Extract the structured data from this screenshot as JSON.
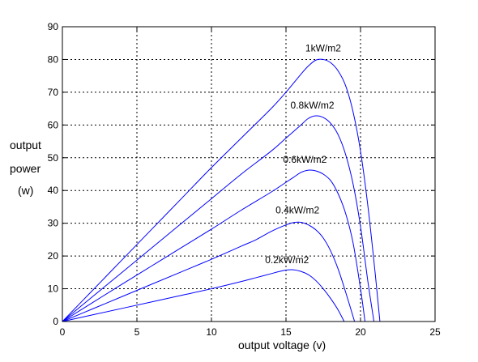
{
  "chart_data": {
    "type": "line",
    "xlabel": "output voltage (v)",
    "ylabel_lines": [
      "output",
      "power",
      "(w)"
    ],
    "xlim": [
      0,
      25
    ],
    "ylim": [
      0,
      90
    ],
    "xticks": [
      0,
      5,
      10,
      15,
      20,
      25
    ],
    "yticks": [
      0,
      10,
      20,
      30,
      40,
      50,
      60,
      70,
      80,
      90
    ],
    "grid": true,
    "line_color": "#0000ff",
    "series": [
      {
        "name": "1kW/m2",
        "x": [
          0,
          2,
          4,
          6,
          8,
          10,
          12,
          14,
          15,
          16,
          16.5,
          17,
          17.5,
          18,
          18.5,
          19,
          19.5,
          20,
          20.5,
          21,
          21.3
        ],
        "y": [
          0,
          9.4,
          18.8,
          28.2,
          37.6,
          47,
          56,
          65,
          70,
          75.5,
          78,
          79.8,
          80,
          79,
          76.5,
          72,
          64,
          52,
          35,
          14,
          0
        ]
      },
      {
        "name": "0.8kW/m2",
        "x": [
          0,
          2,
          4,
          6,
          8,
          10,
          12,
          14,
          15,
          16,
          16.5,
          17,
          17.5,
          18,
          18.5,
          19,
          19.5,
          20,
          20.5,
          20.9
        ],
        "y": [
          0,
          7.5,
          15,
          22.5,
          30,
          37.5,
          45,
          52,
          56,
          60,
          62,
          62.8,
          62.3,
          60.5,
          57,
          51,
          42,
          29,
          12,
          0
        ]
      },
      {
        "name": "0.6kW/m2",
        "x": [
          0,
          2,
          4,
          6,
          8,
          10,
          12,
          14,
          15,
          15.5,
          16,
          16.5,
          17,
          17.5,
          18,
          18.5,
          19,
          19.5,
          20,
          20.3
        ],
        "y": [
          0,
          5.7,
          11.4,
          17,
          22.6,
          28.2,
          34,
          39.5,
          42.5,
          44,
          45.5,
          46.2,
          46,
          45,
          43,
          39,
          33,
          24,
          10,
          0
        ]
      },
      {
        "name": "0.4kW/m2",
        "x": [
          0,
          2,
          4,
          6,
          8,
          10,
          12,
          13,
          14,
          15,
          15.5,
          16,
          16.5,
          17,
          17.5,
          18,
          18.5,
          19,
          19.6
        ],
        "y": [
          0,
          3.8,
          7.6,
          11.4,
          15.2,
          19,
          23,
          25,
          27.5,
          29.5,
          30.2,
          30.3,
          29.5,
          28,
          25.5,
          21.5,
          16,
          9,
          0
        ]
      },
      {
        "name": "0.2kW/m2",
        "x": [
          0,
          2,
          4,
          6,
          8,
          10,
          12,
          13,
          14,
          14.5,
          15,
          15.5,
          16,
          16.5,
          17,
          17.5,
          18,
          18.5,
          18.9
        ],
        "y": [
          0,
          2,
          4,
          6,
          8,
          10,
          12.2,
          13.4,
          14.6,
          15.2,
          15.7,
          15.8,
          15.3,
          14.3,
          12.5,
          10,
          7,
          3.5,
          0
        ]
      }
    ],
    "annotations": [
      {
        "text": "1kW/m2",
        "x": 16.3,
        "y": 82.5
      },
      {
        "text": "0.8kW/m2",
        "x": 15.3,
        "y": 65
      },
      {
        "text": "0.6kW/m2",
        "x": 14.8,
        "y": 48.5
      },
      {
        "text": "0.4kW/m2",
        "x": 14.3,
        "y": 33
      },
      {
        "text": "0.2kW/m2",
        "x": 13.6,
        "y": 17.8
      }
    ]
  }
}
